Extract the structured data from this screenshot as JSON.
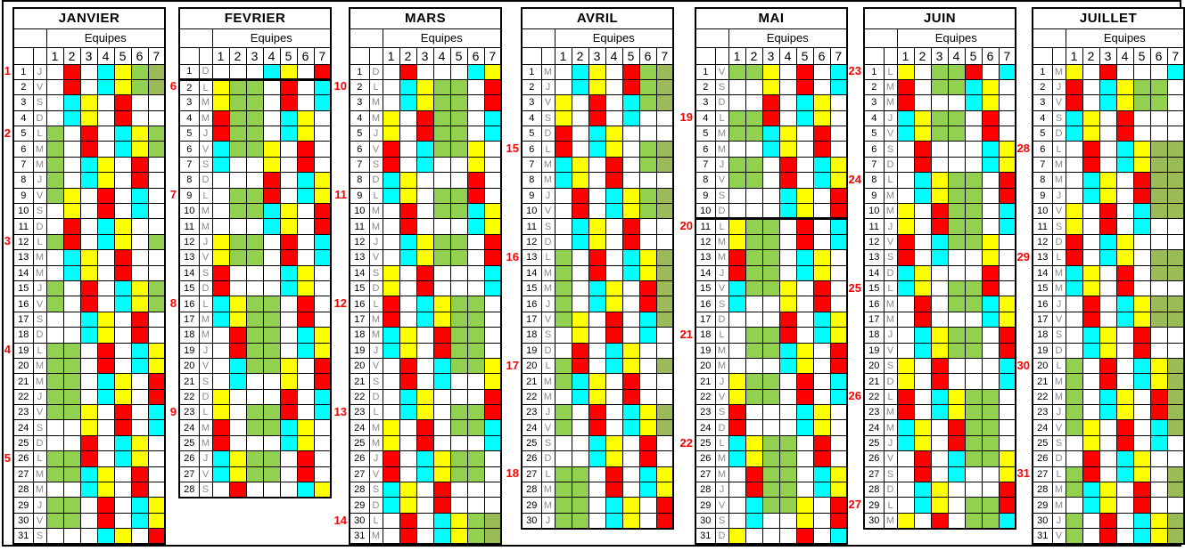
{
  "sheet": {
    "equipes_label": "Equipes",
    "team_numbers": [
      "1",
      "2",
      "3",
      "4",
      "5",
      "6",
      "7"
    ]
  },
  "colors": {
    "W": "#FFFFFF",
    "R": "#FF0000",
    "C": "#00FFFF",
    "Y": "#FFFF00",
    "G": "#92D050",
    "O": "#9BBB59",
    "frame": "#000000",
    "day_letter": "#8A8A8A",
    "week_number": "#FF0000"
  },
  "months": [
    {
      "name": "JANVIER",
      "thick_below_day": null,
      "weeks": [
        [
          "1",
          1
        ],
        [
          "2",
          5
        ],
        [
          "3",
          12
        ],
        [
          "4",
          19
        ],
        [
          "5",
          26
        ]
      ],
      "days": [
        [
          "1",
          "J",
          "WRWCYGO"
        ],
        [
          "2",
          "V",
          "WRWCYGO"
        ],
        [
          "3",
          "S",
          "WCYWRWW"
        ],
        [
          "4",
          "D",
          "WCYWRWW"
        ],
        [
          "5",
          "L",
          "GWRWCYG"
        ],
        [
          "6",
          "M",
          "GWRWCYG"
        ],
        [
          "7",
          "M",
          "GWCYWRW"
        ],
        [
          "8",
          "J",
          "GWCYWRW"
        ],
        [
          "9",
          "V",
          "GYWRWCW"
        ],
        [
          "10",
          "S",
          "WYWRWCW"
        ],
        [
          "11",
          "D",
          "WRWCYWW"
        ],
        [
          "12",
          "L",
          "GRWCYWG"
        ],
        [
          "13",
          "M",
          "WCYWRWW"
        ],
        [
          "14",
          "M",
          "WCYWRWW"
        ],
        [
          "15",
          "J",
          "GWRWCYG"
        ],
        [
          "16",
          "V",
          "GWRWCYG"
        ],
        [
          "17",
          "S",
          "WWCYWRW"
        ],
        [
          "18",
          "D",
          "WWCYWRW"
        ],
        [
          "19",
          "L",
          "GGWRWCY"
        ],
        [
          "20",
          "M",
          "GGWRWCY"
        ],
        [
          "21",
          "M",
          "GGWCYWR"
        ],
        [
          "22",
          "J",
          "GGWCYWR"
        ],
        [
          "23",
          "V",
          "GGYWRWC"
        ],
        [
          "24",
          "S",
          "WWYWRWC"
        ],
        [
          "25",
          "D",
          "WWRWCYW"
        ],
        [
          "26",
          "L",
          "GGRWCYW"
        ],
        [
          "27",
          "M",
          "GGCYWRW"
        ],
        [
          "28",
          "M",
          "WWCYWRW"
        ],
        [
          "29",
          "J",
          "GGWRWCY"
        ],
        [
          "30",
          "V",
          "GGWRWCY"
        ],
        [
          "31",
          "S",
          "WWWCYWR"
        ]
      ]
    },
    {
      "name": "FEVRIER",
      "thick_below_day": 1,
      "weeks": [
        [
          "6",
          2
        ],
        [
          "7",
          9
        ],
        [
          "8",
          16
        ],
        [
          "9",
          23
        ]
      ],
      "days": [
        [
          "1",
          "D",
          "WWWCYWR"
        ],
        [
          "2",
          "L",
          "YGGWRWC"
        ],
        [
          "3",
          "M",
          "YGGWRWC"
        ],
        [
          "4",
          "M",
          "RGGWCYW"
        ],
        [
          "5",
          "J",
          "RGGWCYW"
        ],
        [
          "6",
          "V",
          "CGGYWRW"
        ],
        [
          "7",
          "S",
          "CWWYWRW"
        ],
        [
          "8",
          "D",
          "WWWRWCY"
        ],
        [
          "9",
          "L",
          "WGGRWCY"
        ],
        [
          "10",
          "M",
          "WGGCYWR"
        ],
        [
          "11",
          "M",
          "WWWCYWR"
        ],
        [
          "12",
          "J",
          "YGGWRWC"
        ],
        [
          "13",
          "V",
          "YGGWRWC"
        ],
        [
          "14",
          "S",
          "RWWWCYW"
        ],
        [
          "15",
          "D",
          "RWWWCYW"
        ],
        [
          "16",
          "L",
          "CYGGWRW"
        ],
        [
          "17",
          "M",
          "CYGGWRW"
        ],
        [
          "18",
          "M",
          "WRGGWCY"
        ],
        [
          "19",
          "J",
          "WRGGWCY"
        ],
        [
          "20",
          "V",
          "WCGGYWR"
        ],
        [
          "21",
          "S",
          "WCWWYWR"
        ],
        [
          "22",
          "D",
          "YWWWRWC"
        ],
        [
          "23",
          "L",
          "YWGGRWC"
        ],
        [
          "24",
          "M",
          "RWGGCYW"
        ],
        [
          "25",
          "M",
          "RWWWCYW"
        ],
        [
          "26",
          "J",
          "CYGGWRW"
        ],
        [
          "27",
          "V",
          "CYGGWRW"
        ],
        [
          "28",
          "S",
          "WRWWWCY"
        ]
      ]
    },
    {
      "name": "MARS",
      "thick_below_day": null,
      "weeks": [
        [
          "10",
          2
        ],
        [
          "11",
          9
        ],
        [
          "12",
          16
        ],
        [
          "13",
          23
        ],
        [
          "14",
          30
        ]
      ],
      "days": [
        [
          "1",
          "D",
          "WRWWWCY"
        ],
        [
          "2",
          "L",
          "WCYGGWR"
        ],
        [
          "3",
          "M",
          "WCYGGWR"
        ],
        [
          "4",
          "M",
          "YWRGGWC"
        ],
        [
          "5",
          "J",
          "YWRGGWC"
        ],
        [
          "6",
          "V",
          "RWCGGYW"
        ],
        [
          "7",
          "S",
          "RWCWWYW"
        ],
        [
          "8",
          "D",
          "CYWWWRW"
        ],
        [
          "9",
          "L",
          "CYWGGRW"
        ],
        [
          "10",
          "M",
          "WRWGGCY"
        ],
        [
          "11",
          "M",
          "WRWWWCY"
        ],
        [
          "12",
          "J",
          "WCYGGWR"
        ],
        [
          "13",
          "V",
          "WCYGGWR"
        ],
        [
          "14",
          "S",
          "YWRWWWC"
        ],
        [
          "15",
          "D",
          "YWRWWWC"
        ],
        [
          "16",
          "L",
          "RWCYGGW"
        ],
        [
          "17",
          "M",
          "RWCYGGW"
        ],
        [
          "18",
          "M",
          "CYWRGGW"
        ],
        [
          "19",
          "J",
          "CYWRGGW"
        ],
        [
          "20",
          "V",
          "WRWCGGY"
        ],
        [
          "21",
          "S",
          "WRWCWWY"
        ],
        [
          "22",
          "D",
          "WCYWWWR"
        ],
        [
          "23",
          "L",
          "WCYWGGR"
        ],
        [
          "24",
          "M",
          "YWRWGGC"
        ],
        [
          "25",
          "M",
          "YWRWWWC"
        ],
        [
          "26",
          "J",
          "RWCYGGW"
        ],
        [
          "27",
          "V",
          "RWCYGGW"
        ],
        [
          "28",
          "S",
          "CYWRWWW"
        ],
        [
          "29",
          "D",
          "CYWRWWW"
        ],
        [
          "30",
          "L",
          "WRWCYGO"
        ],
        [
          "31",
          "M",
          "WRWCYGO"
        ]
      ]
    },
    {
      "name": "AVRIL",
      "thick_below_day": null,
      "weeks": [
        [
          "15",
          6
        ],
        [
          "16",
          13
        ],
        [
          "17",
          20
        ],
        [
          "18",
          27
        ]
      ],
      "days": [
        [
          "1",
          "M",
          "WCYWRGO"
        ],
        [
          "2",
          "J",
          "WCYWRGO"
        ],
        [
          "3",
          "V",
          "YWRWCGO"
        ],
        [
          "4",
          "S",
          "YWRWCWW"
        ],
        [
          "5",
          "D",
          "RWCYWWW"
        ],
        [
          "6",
          "L",
          "RWCYWGO"
        ],
        [
          "7",
          "M",
          "CYWRWGO"
        ],
        [
          "8",
          "M",
          "CYWRWWW"
        ],
        [
          "9",
          "J",
          "WRWCYGO"
        ],
        [
          "10",
          "V",
          "WRWCYGO"
        ],
        [
          "11",
          "S",
          "WCYWRWW"
        ],
        [
          "12",
          "D",
          "WCYWRWW"
        ],
        [
          "13",
          "L",
          "GWRWCYO"
        ],
        [
          "14",
          "M",
          "GWRWCYO"
        ],
        [
          "15",
          "M",
          "GWCYWRO"
        ],
        [
          "16",
          "J",
          "GWCYWRO"
        ],
        [
          "17",
          "V",
          "GYWRWCO"
        ],
        [
          "18",
          "S",
          "WYWRWCW"
        ],
        [
          "19",
          "D",
          "WRWCYWW"
        ],
        [
          "20",
          "L",
          "GRWCYWO"
        ],
        [
          "21",
          "M",
          "GCYWRWW"
        ],
        [
          "22",
          "M",
          "WCYWRWW"
        ],
        [
          "23",
          "J",
          "GWRWCYO"
        ],
        [
          "24",
          "V",
          "GWRWCYO"
        ],
        [
          "25",
          "S",
          "WWCYWRW"
        ],
        [
          "26",
          "D",
          "WWCYWRW"
        ],
        [
          "27",
          "L",
          "GGWRWCY"
        ],
        [
          "28",
          "M",
          "GGWRWCY"
        ],
        [
          "29",
          "M",
          "GGWCYWR"
        ],
        [
          "30",
          "J",
          "GGWCYWR"
        ]
      ]
    },
    {
      "name": "MAI",
      "thick_below_day": 10,
      "weeks": [
        [
          "19",
          4
        ],
        [
          "20",
          11
        ],
        [
          "21",
          18
        ],
        [
          "22",
          25
        ]
      ],
      "days": [
        [
          "1",
          "V",
          "GGYWRWC"
        ],
        [
          "2",
          "S",
          "WWYWRWC"
        ],
        [
          "3",
          "D",
          "WWRWCYW"
        ],
        [
          "4",
          "L",
          "GGRWCYW"
        ],
        [
          "5",
          "M",
          "GGCYWRW"
        ],
        [
          "6",
          "M",
          "WWCYWRW"
        ],
        [
          "7",
          "J",
          "GGWRWCY"
        ],
        [
          "8",
          "V",
          "GGWRWCY"
        ],
        [
          "9",
          "S",
          "WWWCYWR"
        ],
        [
          "10",
          "D",
          "WWWCYWR"
        ],
        [
          "11",
          "L",
          "YGGWRWC"
        ],
        [
          "12",
          "M",
          "YGGWRWC"
        ],
        [
          "13",
          "M",
          "RGGWCYW"
        ],
        [
          "14",
          "J",
          "RGGWCYW"
        ],
        [
          "15",
          "V",
          "CGGYWRW"
        ],
        [
          "16",
          "S",
          "CWWYWRW"
        ],
        [
          "17",
          "D",
          "WWWRWCY"
        ],
        [
          "18",
          "L",
          "WGGRWCY"
        ],
        [
          "19",
          "M",
          "WGGCYWR"
        ],
        [
          "20",
          "M",
          "WWWCYWR"
        ],
        [
          "21",
          "J",
          "YGGWRWC"
        ],
        [
          "22",
          "V",
          "YGGWRWC"
        ],
        [
          "23",
          "S",
          "RWWWCYW"
        ],
        [
          "24",
          "D",
          "RWWWCYW"
        ],
        [
          "25",
          "L",
          "CYGGWRW"
        ],
        [
          "26",
          "M",
          "CYGGWRW"
        ],
        [
          "27",
          "M",
          "WRGGWCY"
        ],
        [
          "28",
          "J",
          "WRGGWCY"
        ],
        [
          "29",
          "V",
          "WCGGYWR"
        ],
        [
          "30",
          "S",
          "WCWWYWR"
        ],
        [
          "31",
          "D",
          "YWWWRWC"
        ]
      ]
    },
    {
      "name": "JUIN",
      "thick_below_day": null,
      "weeks": [
        [
          "23",
          1
        ],
        [
          "24",
          8
        ],
        [
          "25",
          15
        ],
        [
          "26",
          22
        ],
        [
          "27",
          29
        ]
      ],
      "days": [
        [
          "1",
          "L",
          "YWGGRWC"
        ],
        [
          "2",
          "M",
          "RWGGCYW"
        ],
        [
          "3",
          "M",
          "RWWWCYW"
        ],
        [
          "4",
          "J",
          "CYGGWRW"
        ],
        [
          "5",
          "V",
          "CYGGWRW"
        ],
        [
          "6",
          "S",
          "WRWWWCY"
        ],
        [
          "7",
          "D",
          "WRWWWCY"
        ],
        [
          "8",
          "L",
          "WCYGGWR"
        ],
        [
          "9",
          "M",
          "WCYGGWR"
        ],
        [
          "10",
          "M",
          "YWRGGWC"
        ],
        [
          "11",
          "J",
          "YWRGGWC"
        ],
        [
          "12",
          "V",
          "RWCGGYW"
        ],
        [
          "13",
          "S",
          "RWCWWYW"
        ],
        [
          "14",
          "D",
          "CYWWWRW"
        ],
        [
          "15",
          "L",
          "CYWGGRW"
        ],
        [
          "16",
          "M",
          "WRWGGCY"
        ],
        [
          "17",
          "M",
          "WRWWWCY"
        ],
        [
          "18",
          "J",
          "WCYGGWR"
        ],
        [
          "19",
          "V",
          "WCYGGWR"
        ],
        [
          "20",
          "S",
          "YWRWWWC"
        ],
        [
          "21",
          "D",
          "YWRWWWC"
        ],
        [
          "22",
          "L",
          "RWCYGGW"
        ],
        [
          "23",
          "M",
          "RWCYGGW"
        ],
        [
          "24",
          "M",
          "CYWRGGW"
        ],
        [
          "25",
          "J",
          "CYWRGGW"
        ],
        [
          "26",
          "V",
          "WRWCGGY"
        ],
        [
          "27",
          "S",
          "WRWCWWY"
        ],
        [
          "28",
          "D",
          "WCYWWWR"
        ],
        [
          "29",
          "L",
          "WCYWGGR"
        ],
        [
          "30",
          "M",
          "YWRWGGC"
        ]
      ]
    },
    {
      "name": "JUILLET",
      "thick_below_day": null,
      "weeks": [
        [
          "28",
          6
        ],
        [
          "29",
          13
        ],
        [
          "30",
          20
        ],
        [
          "31",
          27
        ]
      ],
      "days": [
        [
          "1",
          "M",
          "YWRWWWC"
        ],
        [
          "2",
          "J",
          "RWCYGGW"
        ],
        [
          "3",
          "V",
          "RWCYGGW"
        ],
        [
          "4",
          "S",
          "CYWRWWW"
        ],
        [
          "5",
          "D",
          "CYWRWWW"
        ],
        [
          "6",
          "L",
          "WRWCYOO"
        ],
        [
          "7",
          "M",
          "WRWCYOO"
        ],
        [
          "8",
          "M",
          "WCYWROO"
        ],
        [
          "9",
          "J",
          "WCYWROO"
        ],
        [
          "10",
          "V",
          "YWRWCOO"
        ],
        [
          "11",
          "S",
          "YWRWCWW"
        ],
        [
          "12",
          "D",
          "RWCYWWW"
        ],
        [
          "13",
          "L",
          "RWCYWOO"
        ],
        [
          "14",
          "M",
          "CYWRWOO"
        ],
        [
          "15",
          "M",
          "CYWRWWW"
        ],
        [
          "16",
          "J",
          "WRWCYOO"
        ],
        [
          "17",
          "V",
          "WRWCYOO"
        ],
        [
          "18",
          "S",
          "WCYWRWW"
        ],
        [
          "19",
          "D",
          "WCYWRWW"
        ],
        [
          "20",
          "L",
          "GWRWCYO"
        ],
        [
          "21",
          "M",
          "GWRWCYO"
        ],
        [
          "22",
          "M",
          "GWCYWRO"
        ],
        [
          "23",
          "J",
          "GWCYWRO"
        ],
        [
          "24",
          "V",
          "GYWRWCO"
        ],
        [
          "25",
          "S",
          "WYWRWCW"
        ],
        [
          "26",
          "D",
          "WRWCYWW"
        ],
        [
          "27",
          "L",
          "GRWCYWO"
        ],
        [
          "28",
          "M",
          "GCYWRWO"
        ],
        [
          "29",
          "M",
          "WCYWRWW"
        ],
        [
          "30",
          "J",
          "GWRWCYO"
        ],
        [
          "31",
          "V",
          "GWRWCYO"
        ]
      ]
    }
  ]
}
